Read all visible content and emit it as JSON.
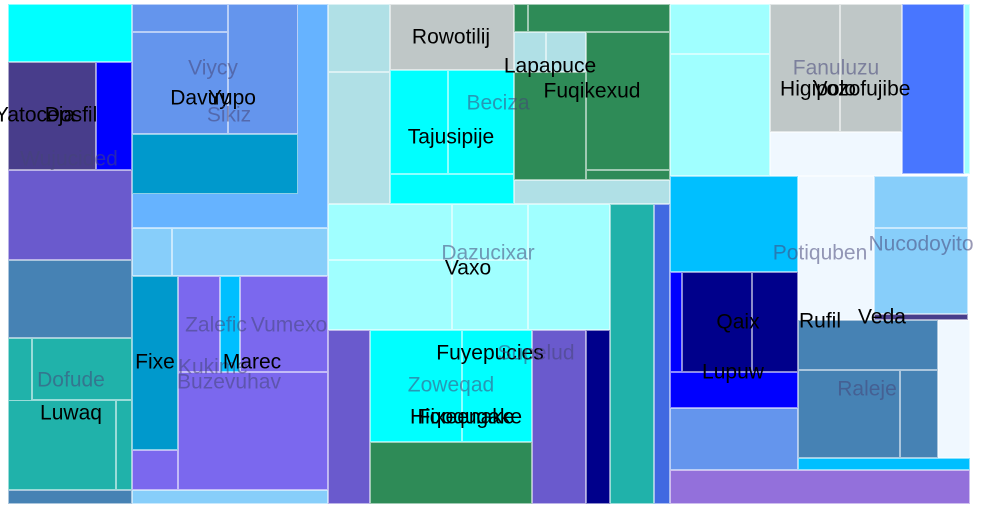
{
  "chart_data": {
    "type": "treemap",
    "title": "",
    "labels": [
      {
        "text": "Yatoceja",
        "style": "dark"
      },
      {
        "text": "Dosfil",
        "style": "dark"
      },
      {
        "text": "Wujucided",
        "style": "faint"
      },
      {
        "text": "Viycy",
        "style": "faint"
      },
      {
        "text": "Davuy",
        "style": "dark"
      },
      {
        "text": "Yupo",
        "style": "dark"
      },
      {
        "text": "Sikiz",
        "style": "faint"
      },
      {
        "text": "Rowotilij",
        "style": "dark"
      },
      {
        "text": "Lapapuce",
        "style": "dark"
      },
      {
        "text": "Beciza",
        "style": "faint"
      },
      {
        "text": "Fuqikexud",
        "style": "dark"
      },
      {
        "text": "Tajusipije",
        "style": "dark"
      },
      {
        "text": "Fanuluzu",
        "style": "faint"
      },
      {
        "text": "Higipolo",
        "style": "dark"
      },
      {
        "text": "Vozofujibe",
        "style": "dark"
      },
      {
        "text": "Dazucixar",
        "style": "faint"
      },
      {
        "text": "Vaxo",
        "style": "dark"
      },
      {
        "text": "Potiquben",
        "style": "faint"
      },
      {
        "text": "Nucodoyito",
        "style": "faint"
      },
      {
        "text": "Zalefic",
        "style": "faint"
      },
      {
        "text": "Vumexo",
        "style": "faint"
      },
      {
        "text": "Fixe",
        "style": "dark"
      },
      {
        "text": "Kukime",
        "style": "faint"
      },
      {
        "text": "Marec",
        "style": "dark"
      },
      {
        "text": "Buzevuhav",
        "style": "faint"
      },
      {
        "text": "Dofude",
        "style": "faint"
      },
      {
        "text": "Luwaq",
        "style": "dark"
      },
      {
        "text": "Fuyepucies",
        "style": "dark"
      },
      {
        "text": "Supelud",
        "style": "faint"
      },
      {
        "text": "Zoweqad",
        "style": "faint"
      },
      {
        "text": "Fixeenake",
        "style": "dark"
      },
      {
        "text": "Hiqoqugake",
        "style": "dark"
      },
      {
        "text": "Qaix",
        "style": "dark"
      },
      {
        "text": "Rufil",
        "style": "dark"
      },
      {
        "text": "Veda",
        "style": "dark"
      },
      {
        "text": "Lupuw",
        "style": "dark"
      },
      {
        "text": "Raleje",
        "style": "faint"
      }
    ],
    "palette": [
      "#00ffff",
      "#483d8b",
      "#0000ff",
      "#6a5acd",
      "#6495ed",
      "#4682b4",
      "#87cefa",
      "#0099cc",
      "#b0e0e6",
      "#bfc7c7",
      "#2e8b57",
      "#00bfff",
      "#f0f8ff",
      "#1e90ff",
      "#20b2aa",
      "#00008b",
      "#7b68ee",
      "#4169e1",
      "#9370db"
    ]
  }
}
